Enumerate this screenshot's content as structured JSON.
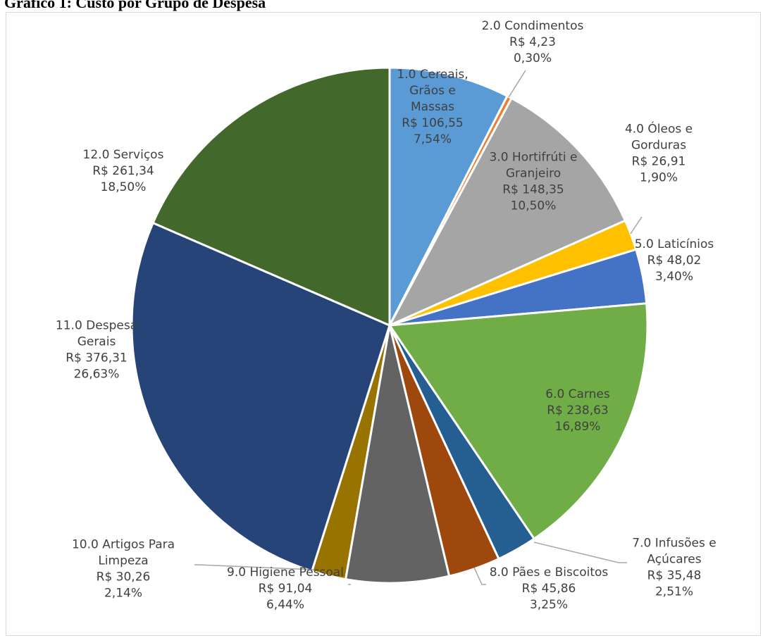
{
  "title": "Gráfico 1: Custo por Grupo de Despesa",
  "chart_data": {
    "type": "pie",
    "title": "Gráfico 1: Custo por Grupo de Despesa",
    "start_angle": 0,
    "direction": "clockwise",
    "slices": [
      {
        "name": "1.0 Cereais, Grãos e Massas",
        "label_lines": [
          "1.0 Cereais,",
          "Grãos e",
          "Massas"
        ],
        "value": 106.55,
        "value_label": "R$ 106,55",
        "percent": 7.54,
        "percent_label": "7,54%",
        "color": "#5b9bd5"
      },
      {
        "name": "2.0 Condimentos",
        "label_lines": [
          "2.0 Condimentos"
        ],
        "value": 4.23,
        "value_label": "R$ 4,23",
        "percent": 0.3,
        "percent_label": "0,30%",
        "color": "#ed7d31"
      },
      {
        "name": "3.0 Hortifrúti e Granjeiro",
        "label_lines": [
          "3.0 Hortifrúti e",
          "Granjeiro"
        ],
        "value": 148.35,
        "value_label": "R$ 148,35",
        "percent": 10.5,
        "percent_label": "10,50%",
        "color": "#a5a5a5"
      },
      {
        "name": "4.0 Óleos e Gorduras",
        "label_lines": [
          "4.0 Óleos e",
          "Gorduras"
        ],
        "value": 26.91,
        "value_label": "R$ 26,91",
        "percent": 1.9,
        "percent_label": "1,90%",
        "color": "#ffc000"
      },
      {
        "name": "5.0 Laticínios",
        "label_lines": [
          "5.0 Laticínios"
        ],
        "value": 48.02,
        "value_label": "R$ 48,02",
        "percent": 3.4,
        "percent_label": "3,40%",
        "color": "#4472c4"
      },
      {
        "name": "6.0 Carnes",
        "label_lines": [
          "6.0 Carnes"
        ],
        "value": 238.63,
        "value_label": "R$ 238,63",
        "percent": 16.89,
        "percent_label": "16,89%",
        "color": "#70ad47"
      },
      {
        "name": "7.0 Infusões e Açúcares",
        "label_lines": [
          "7.0 Infusões e",
          "Açúcares"
        ],
        "value": 35.48,
        "value_label": "R$ 35,48",
        "percent": 2.51,
        "percent_label": "2,51%",
        "color": "#255e91"
      },
      {
        "name": "8.0 Pães e Biscoitos",
        "label_lines": [
          "8.0 Pães e Biscoitos"
        ],
        "value": 45.86,
        "value_label": "R$ 45,86",
        "percent": 3.25,
        "percent_label": "3,25%",
        "color": "#9e480e"
      },
      {
        "name": "9.0 Higiene Pessoal",
        "label_lines": [
          "9.0 Higiene Pessoal"
        ],
        "value": 91.04,
        "value_label": "R$ 91,04",
        "percent": 6.44,
        "percent_label": "6,44%",
        "color": "#636363"
      },
      {
        "name": "10.0 Artigos Para Limpeza",
        "label_lines": [
          "10.0 Artigos Para",
          "Limpeza"
        ],
        "value": 30.26,
        "value_label": "R$ 30,26",
        "percent": 2.14,
        "percent_label": "2,14%",
        "color": "#997300"
      },
      {
        "name": "11.0 Despesa Gerais",
        "label_lines": [
          "11.0 Despesa",
          "Gerais"
        ],
        "value": 376.31,
        "value_label": "R$ 376,31",
        "percent": 26.63,
        "percent_label": "26,63%",
        "color": "#264478"
      },
      {
        "name": "12.0 Serviços",
        "label_lines": [
          "12.0 Serviços"
        ],
        "value": 261.34,
        "value_label": "R$ 261,34",
        "percent": 18.5,
        "percent_label": "18,50%",
        "color": "#43682b"
      }
    ]
  }
}
